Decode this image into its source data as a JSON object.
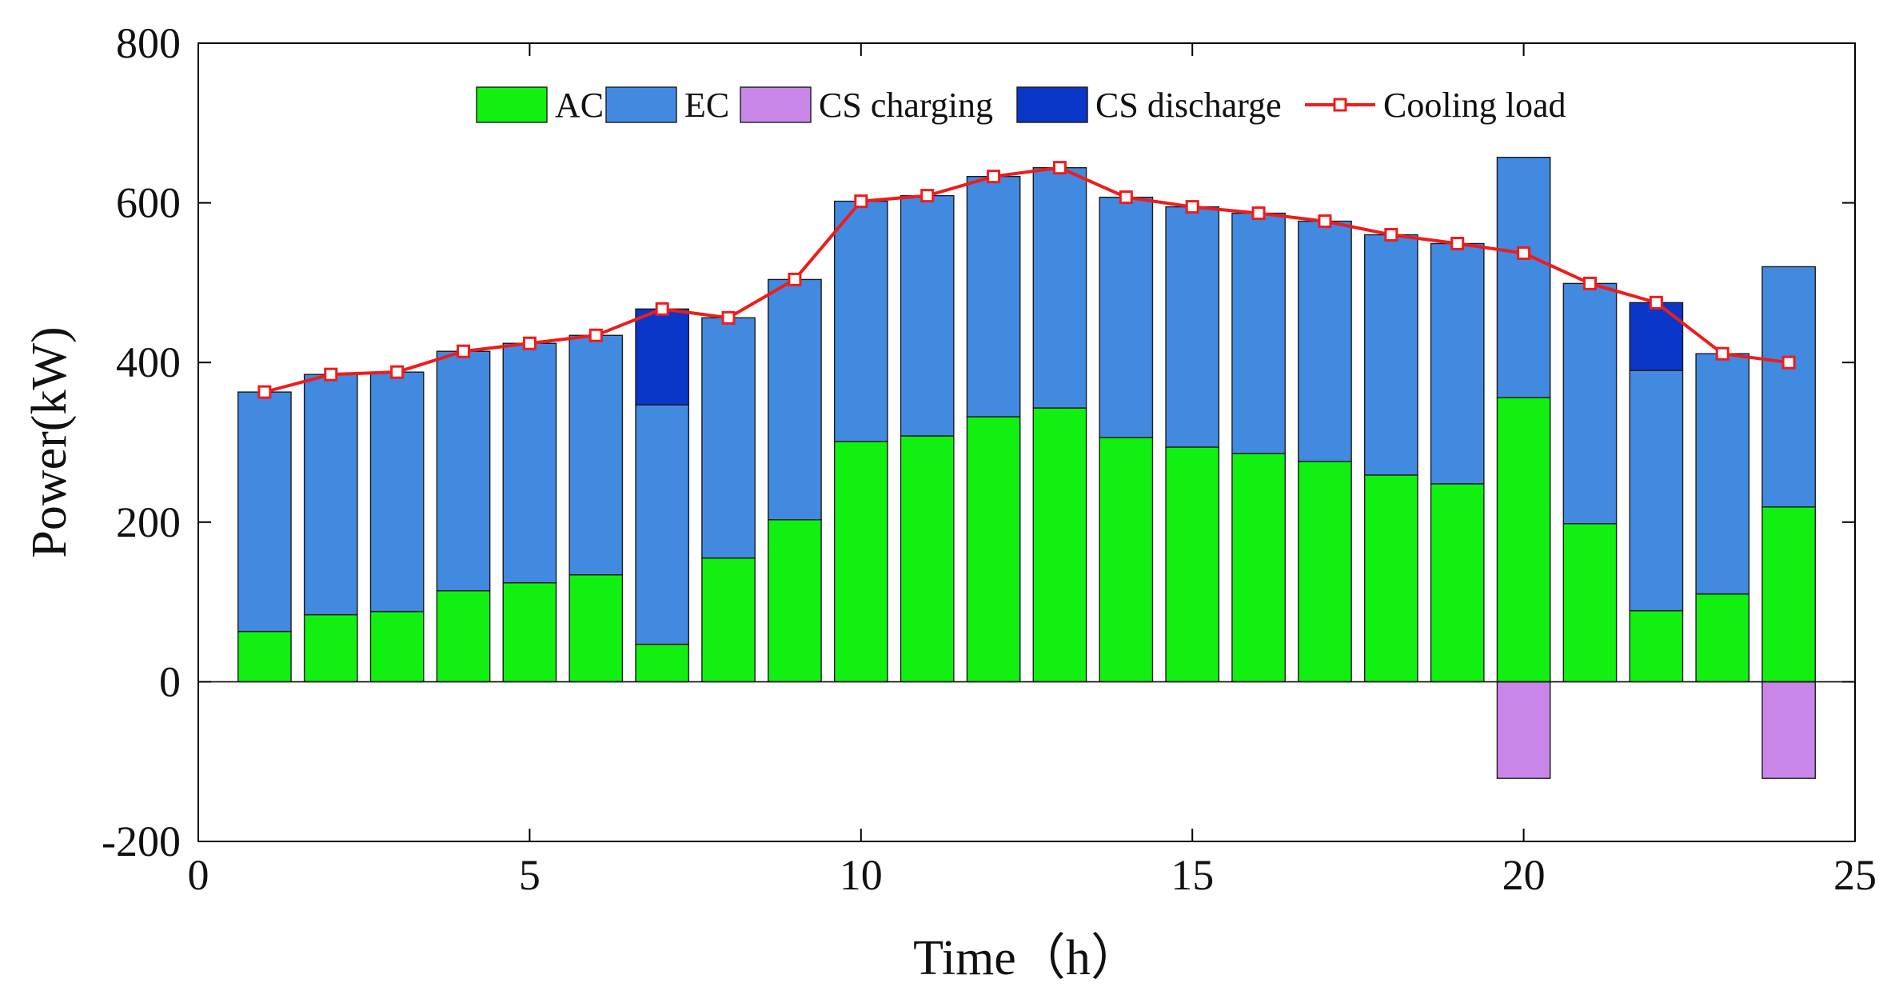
{
  "chart_data": {
    "type": "bar",
    "stacked": true,
    "xlabel": "Time（h）",
    "ylabel": "Power(kW)",
    "xlim": [
      0,
      25
    ],
    "ylim": [
      -200,
      800
    ],
    "xticks": [
      "0",
      "5",
      "10",
      "15",
      "20",
      "25"
    ],
    "yticks": [
      "-200",
      "0",
      "200",
      "400",
      "600",
      "800"
    ],
    "legend_position": "top",
    "categories": [
      "1",
      "2",
      "3",
      "4",
      "5",
      "6",
      "7",
      "8",
      "9",
      "10",
      "11",
      "12",
      "13",
      "14",
      "15",
      "16",
      "17",
      "18",
      "19",
      "20",
      "21",
      "22",
      "23",
      "24"
    ],
    "series": [
      {
        "name": "AC",
        "kind": "bar",
        "color": "#12F012",
        "values": [
          63,
          84,
          88,
          114,
          124,
          134,
          47,
          155,
          203,
          301,
          308,
          332,
          343,
          306,
          294,
          286,
          276,
          259,
          248,
          356,
          198,
          89,
          110,
          219
        ]
      },
      {
        "name": "EC",
        "kind": "bar",
        "color": "#428AE0",
        "values": [
          300,
          301,
          300,
          300,
          300,
          300,
          300,
          301,
          301,
          301,
          301,
          301,
          301,
          301,
          301,
          301,
          301,
          301,
          301,
          301,
          301,
          301,
          301,
          301
        ]
      },
      {
        "name": "CS charging",
        "kind": "bar",
        "color": "#C887E8",
        "values": [
          0,
          0,
          0,
          0,
          0,
          0,
          0,
          0,
          0,
          0,
          0,
          0,
          0,
          0,
          0,
          0,
          0,
          0,
          0,
          -121,
          0,
          0,
          0,
          -121
        ]
      },
      {
        "name": "CS discharge",
        "kind": "bar",
        "color": "#0A37C8",
        "values": [
          0,
          0,
          0,
          0,
          0,
          0,
          120,
          0,
          0,
          0,
          0,
          0,
          0,
          0,
          0,
          0,
          0,
          0,
          0,
          0,
          0,
          85,
          0,
          0
        ]
      },
      {
        "name": "Cooling load",
        "kind": "line",
        "color": "#EE1C1C",
        "values": [
          363,
          385,
          388,
          414,
          424,
          434,
          467,
          456,
          504,
          602,
          609,
          633,
          644,
          607,
          595,
          587,
          577,
          560,
          549,
          537,
          499,
          475,
          411,
          400
        ]
      }
    ]
  }
}
